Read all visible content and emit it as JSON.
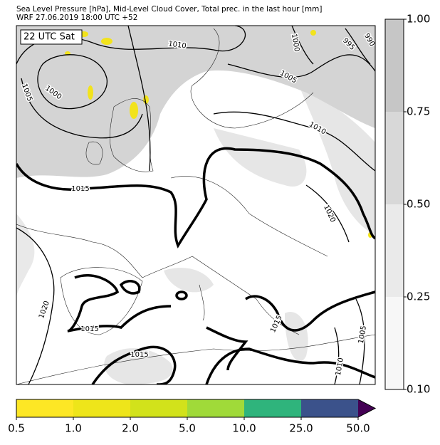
{
  "header": {
    "title": "Sea Level Pressure [hPa], Mid-Level Cloud Cover, Total prec. in the last hour [mm]",
    "subtitle": "WRF 27.06.2019 18:00 UTC +52"
  },
  "map": {
    "time_label": "22 UTC Sat",
    "isobar_labels": [
      "1010",
      "1000",
      "995",
      "990",
      "1005",
      "1000",
      "1005",
      "1010",
      "1015",
      "1020",
      "1020",
      "1015",
      "1015",
      "1015",
      "1005",
      "1010"
    ]
  },
  "cloud_colorbar": {
    "ticks": [
      "1.00",
      "0.75",
      "0.50",
      "0.25",
      "0.10"
    ],
    "colors": [
      "#c6c6c6",
      "#d8d8d8",
      "#eaeaea",
      "#f7f7f7"
    ]
  },
  "precip_colorbar": {
    "ticks": [
      "0.5",
      "1.0",
      "2.0",
      "5.0",
      "10.0",
      "25.0",
      "50.0"
    ],
    "colors": [
      "#fde725",
      "#eee51a",
      "#d2e21b",
      "#a0da39",
      "#2fb47c",
      "#3b528b",
      "#440154"
    ]
  }
}
